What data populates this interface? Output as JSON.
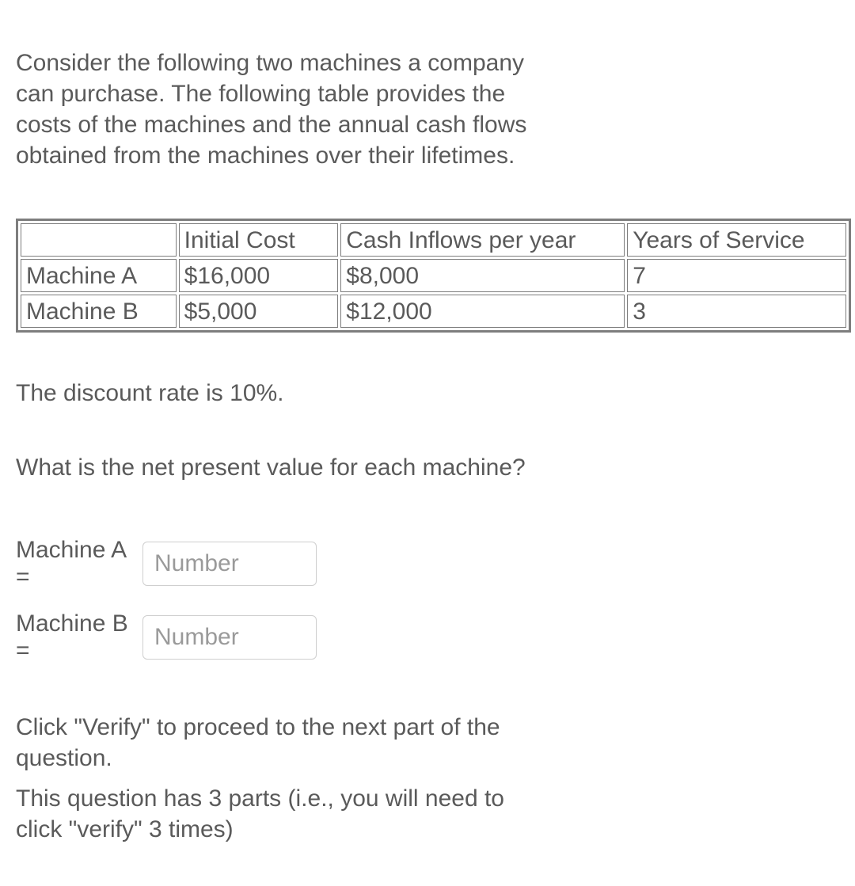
{
  "intro_text": "Consider the following two machines a company can purchase. The following table provides the costs of the machines and the annual cash flows obtained from the machines over their lifetimes.",
  "table": {
    "columns": [
      "",
      "Initial Cost",
      "Cash Inflows per year",
      "Years of Service"
    ],
    "rows": [
      [
        "Machine A",
        "$16,000",
        "$8,000",
        "7"
      ],
      [
        "Machine B",
        "$5,000",
        "$12,000",
        "3"
      ]
    ],
    "border_color": "#7e7e7e",
    "text_color": "#5a5a5a",
    "font_size": 30
  },
  "discount_text": "The discount rate is 10%.",
  "question_text": "What is the net present value for each machine?",
  "inputs": {
    "a_label": "Machine A =",
    "b_label": "Machine B =",
    "placeholder": "Number"
  },
  "instructions": {
    "line1": "Click \"Verify\" to proceed to the next part of the question.",
    "line2": "This question has 3 parts (i.e., you will need to click \"verify\" 3 times)"
  },
  "colors": {
    "text": "#5a5a5a",
    "placeholder": "#9a9a9a",
    "input_border": "#cfcfcf",
    "background": "#ffffff"
  }
}
